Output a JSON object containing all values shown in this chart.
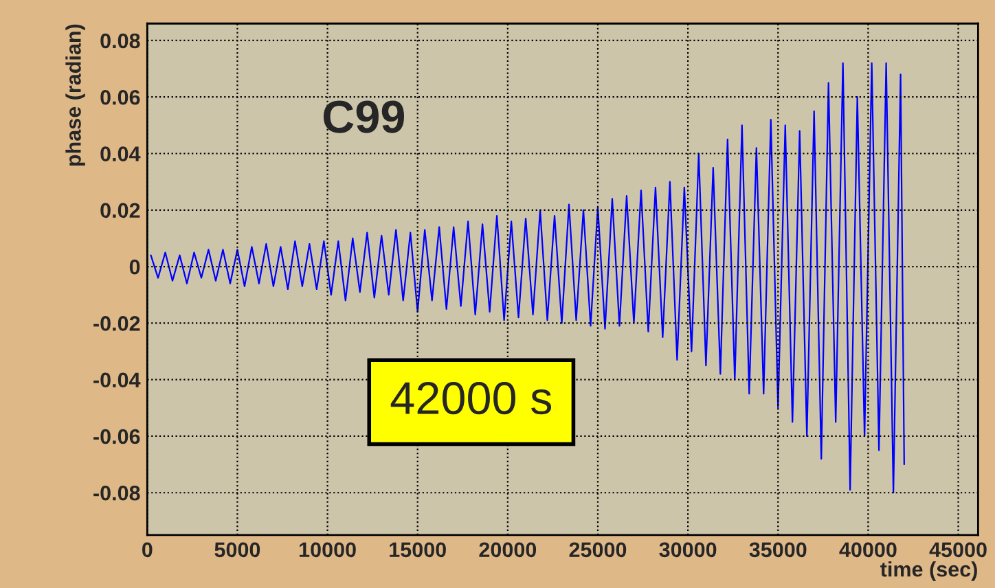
{
  "chart_data": {
    "type": "line",
    "xlabel": "time (sec)",
    "ylabel": "phase (radian)",
    "annotations": [
      "C99",
      "42000 s"
    ],
    "x": [
      200,
      600,
      1000,
      1400,
      1800,
      2200,
      2600,
      3000,
      3400,
      3800,
      4200,
      4600,
      5000,
      5400,
      5800,
      6200,
      6600,
      7000,
      7400,
      7800,
      8200,
      8600,
      9000,
      9400,
      9800,
      10200,
      10600,
      11000,
      11400,
      11800,
      12200,
      12600,
      13000,
      13400,
      13800,
      14200,
      14600,
      15000,
      15400,
      15800,
      16200,
      16600,
      17000,
      17400,
      17800,
      18200,
      18600,
      19000,
      19400,
      19800,
      20200,
      20600,
      21000,
      21400,
      21800,
      22200,
      22600,
      23000,
      23400,
      23800,
      24200,
      24600,
      25000,
      25400,
      25800,
      26200,
      26600,
      27000,
      27400,
      27800,
      28200,
      28600,
      29000,
      29400,
      29800,
      30200,
      30600,
      31000,
      31400,
      31800,
      32200,
      32600,
      33000,
      33400,
      33800,
      34200,
      34600,
      35000,
      35400,
      35800,
      36200,
      36600,
      37000,
      37400,
      37800,
      38200,
      38600,
      39000,
      39400,
      39800,
      40200,
      40600,
      41000,
      41400,
      41800,
      42000
    ],
    "series": [
      {
        "color": "#0000ff",
        "values": [
          0.004,
          -0.004,
          0.005,
          -0.005,
          0.004,
          -0.006,
          0.005,
          -0.004,
          0.006,
          -0.005,
          0.006,
          -0.006,
          0.006,
          -0.007,
          0.007,
          -0.006,
          0.008,
          -0.007,
          0.007,
          -0.008,
          0.009,
          -0.007,
          0.008,
          -0.008,
          0.009,
          -0.01,
          0.009,
          -0.012,
          0.01,
          -0.009,
          0.012,
          -0.011,
          0.011,
          -0.01,
          0.013,
          -0.012,
          0.012,
          -0.016,
          0.013,
          -0.012,
          0.014,
          -0.015,
          0.014,
          -0.014,
          0.016,
          -0.017,
          0.015,
          -0.016,
          0.018,
          -0.019,
          0.016,
          -0.018,
          0.017,
          -0.017,
          0.02,
          -0.019,
          0.018,
          -0.02,
          0.022,
          -0.019,
          0.02,
          -0.021,
          0.021,
          -0.022,
          0.024,
          -0.021,
          0.025,
          -0.02,
          0.027,
          -0.023,
          0.028,
          -0.025,
          0.03,
          -0.033,
          0.028,
          -0.03,
          0.04,
          -0.035,
          0.035,
          -0.038,
          0.045,
          -0.04,
          0.05,
          -0.045,
          0.042,
          -0.045,
          0.052,
          -0.05,
          0.05,
          -0.055,
          0.048,
          -0.06,
          0.055,
          -0.068,
          0.065,
          -0.055,
          0.072,
          -0.079,
          0.06,
          -0.06,
          0.072,
          -0.065,
          0.072,
          -0.08,
          0.068,
          -0.07
        ]
      }
    ],
    "xlim": [
      0,
      46100
    ],
    "ylim": [
      -0.095,
      0.086
    ],
    "xticks": [
      0,
      5000,
      10000,
      15000,
      20000,
      25000,
      30000,
      35000,
      40000,
      45000
    ],
    "yticks": [
      {
        "value": -0.08,
        "label": "-0.08"
      },
      {
        "value": -0.06,
        "label": "-0.06"
      },
      {
        "value": -0.04,
        "label": "-0.04"
      },
      {
        "value": -0.02,
        "label": "-0.02"
      },
      0,
      0.02,
      0.04,
      0.06,
      0.08
    ],
    "grid": true,
    "marker": "none",
    "line_style": "solid"
  }
}
